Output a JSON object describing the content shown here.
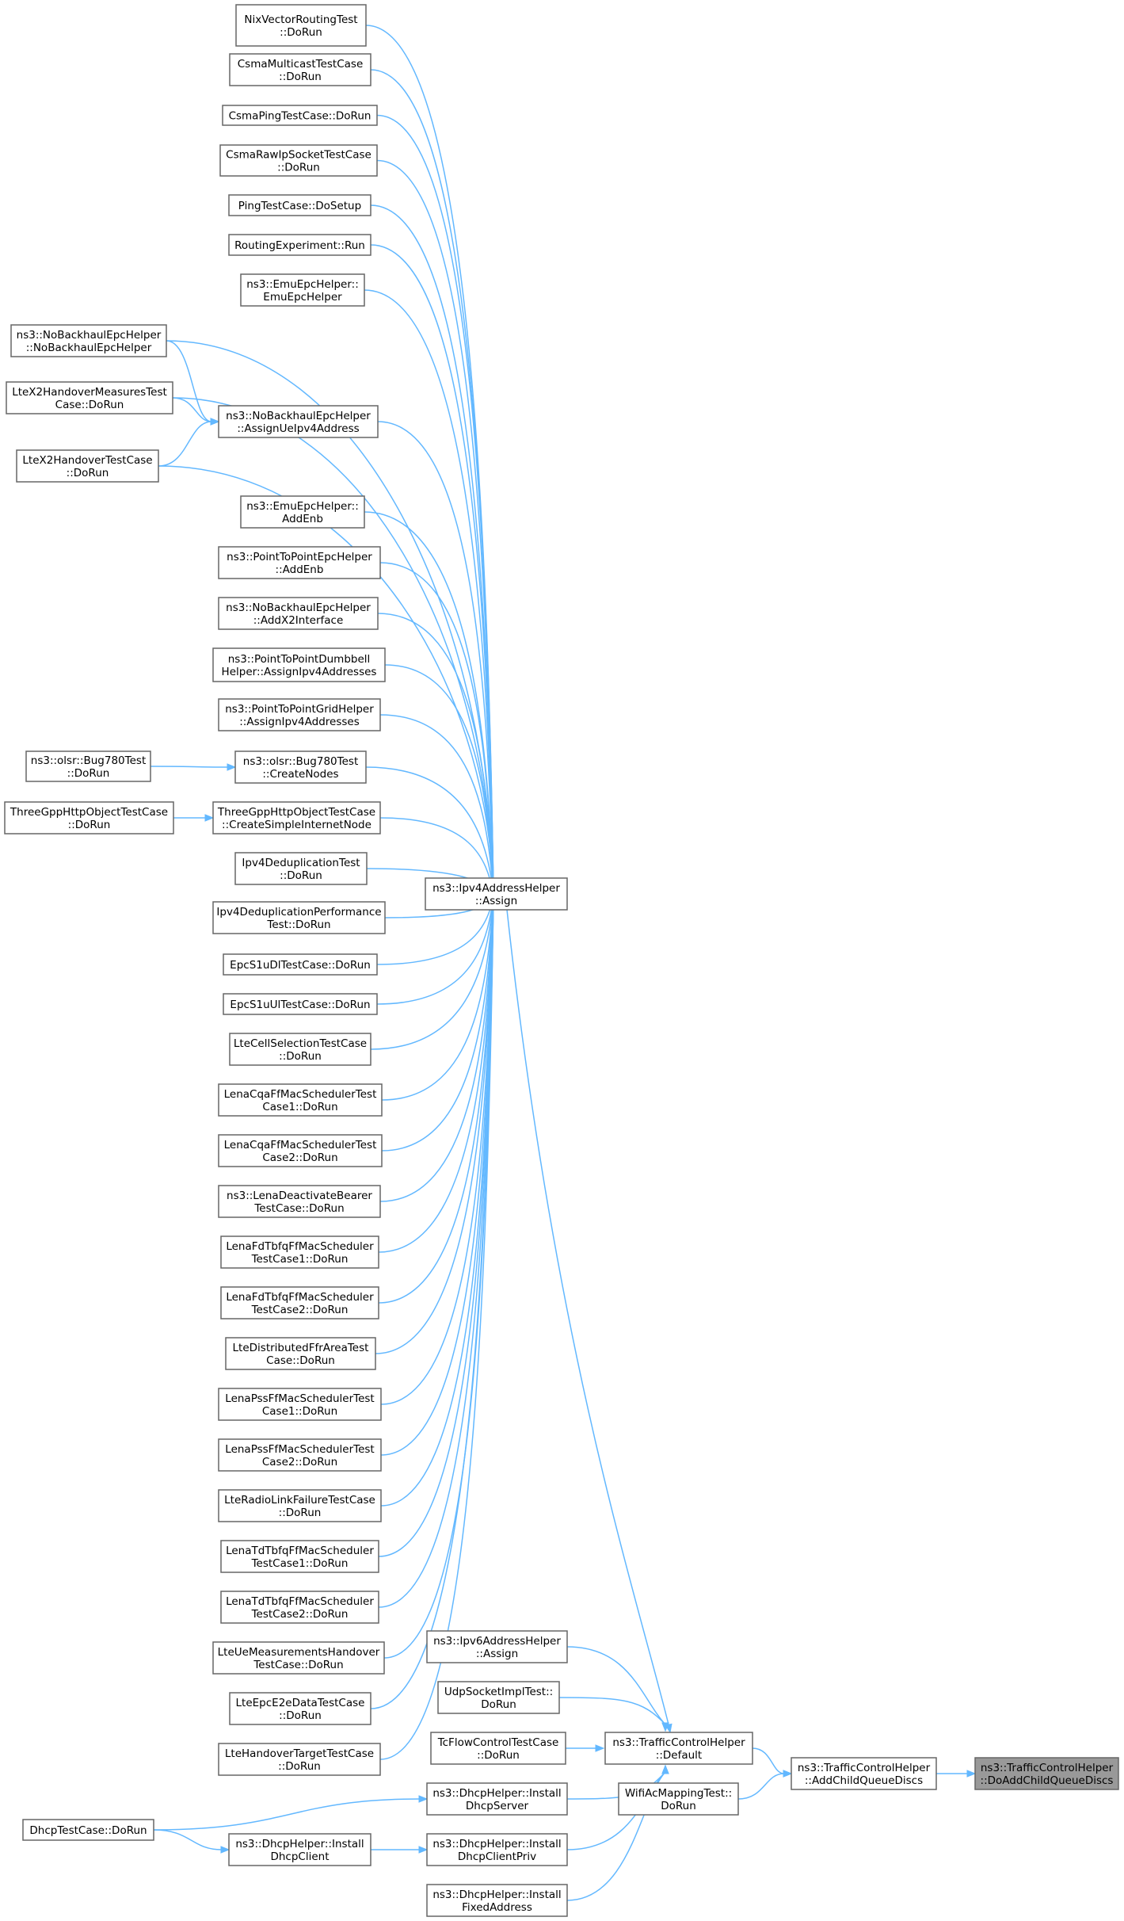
{
  "colors": {
    "edge": "#63b8ff",
    "node_border": "#666666",
    "node_fill": "#ffffff",
    "focus_fill": "#999999"
  },
  "nodes": [
    {
      "id": "nixvector",
      "lines": [
        "NixVectorRoutingTest",
        "::DoRun"
      ]
    },
    {
      "id": "csmamulticast",
      "lines": [
        "CsmaMulticastTestCase",
        "::DoRun"
      ]
    },
    {
      "id": "csmaping",
      "lines": [
        "CsmaPingTestCase::DoRun"
      ]
    },
    {
      "id": "csmarawip",
      "lines": [
        "CsmaRawIpSocketTestCase",
        "::DoRun"
      ]
    },
    {
      "id": "pingtest",
      "lines": [
        "PingTestCase::DoSetup"
      ]
    },
    {
      "id": "routingexp",
      "lines": [
        "RoutingExperiment::Run"
      ]
    },
    {
      "id": "emuepchelper",
      "lines": [
        "ns3::EmuEpcHelper::",
        "EmuEpcHelper"
      ]
    },
    {
      "id": "nobackhaul_ctor",
      "lines": [
        "ns3::NoBackhaulEpcHelper",
        "::NoBackhaulEpcHelper"
      ]
    },
    {
      "id": "ltex2measures",
      "lines": [
        "LteX2HandoverMeasuresTest",
        "Case::DoRun"
      ]
    },
    {
      "id": "nobackhaul_assign",
      "lines": [
        "ns3::NoBackhaulEpcHelper",
        "::AssignUeIpv4Address"
      ]
    },
    {
      "id": "ltex2handover",
      "lines": [
        "LteX2HandoverTestCase",
        "::DoRun"
      ]
    },
    {
      "id": "emu_addenb",
      "lines": [
        "ns3::EmuEpcHelper::",
        "AddEnb"
      ]
    },
    {
      "id": "p2p_addenb",
      "lines": [
        "ns3::PointToPointEpcHelper",
        "::AddEnb"
      ]
    },
    {
      "id": "nobackhaul_x2",
      "lines": [
        "ns3::NoBackhaulEpcHelper",
        "::AddX2Interface"
      ]
    },
    {
      "id": "dumbbell",
      "lines": [
        "ns3::PointToPointDumbbell",
        "Helper::AssignIpv4Addresses"
      ]
    },
    {
      "id": "gridhelper",
      "lines": [
        "ns3::PointToPointGridHelper",
        "::AssignIpv4Addresses"
      ]
    },
    {
      "id": "bug780_run",
      "lines": [
        "ns3::olsr::Bug780Test",
        "::DoRun"
      ]
    },
    {
      "id": "bug780_create",
      "lines": [
        "ns3::olsr::Bug780Test",
        "::CreateNodes"
      ]
    },
    {
      "id": "threegpp_run",
      "lines": [
        "ThreeGppHttpObjectTestCase",
        "::DoRun"
      ]
    },
    {
      "id": "threegpp_create",
      "lines": [
        "ThreeGppHttpObjectTestCase",
        "::CreateSimpleInternetNode"
      ]
    },
    {
      "id": "ipv4dedup",
      "lines": [
        "Ipv4DeduplicationTest",
        "::DoRun"
      ]
    },
    {
      "id": "ipv4assign",
      "lines": [
        "ns3::Ipv4AddressHelper",
        "::Assign"
      ]
    },
    {
      "id": "ipv4dedupperf",
      "lines": [
        "Ipv4DeduplicationPerformance",
        "Test::DoRun"
      ]
    },
    {
      "id": "epcs1udl",
      "lines": [
        "EpcS1uDlTestCase::DoRun"
      ]
    },
    {
      "id": "epcs1uul",
      "lines": [
        "EpcS1uUlTestCase::DoRun"
      ]
    },
    {
      "id": "ltecellsel",
      "lines": [
        "LteCellSelectionTestCase",
        "::DoRun"
      ]
    },
    {
      "id": "cqa1",
      "lines": [
        "LenaCqaFfMacSchedulerTest",
        "Case1::DoRun"
      ]
    },
    {
      "id": "cqa2",
      "lines": [
        "LenaCqaFfMacSchedulerTest",
        "Case2::DoRun"
      ]
    },
    {
      "id": "deactivate",
      "lines": [
        "ns3::LenaDeactivateBearer",
        "TestCase::DoRun"
      ]
    },
    {
      "id": "fdtbfq1",
      "lines": [
        "LenaFdTbfqFfMacScheduler",
        "TestCase1::DoRun"
      ]
    },
    {
      "id": "fdtbfq2",
      "lines": [
        "LenaFdTbfqFfMacScheduler",
        "TestCase2::DoRun"
      ]
    },
    {
      "id": "distffr",
      "lines": [
        "LteDistributedFfrAreaTest",
        "Case::DoRun"
      ]
    },
    {
      "id": "pss1",
      "lines": [
        "LenaPssFfMacSchedulerTest",
        "Case1::DoRun"
      ]
    },
    {
      "id": "pss2",
      "lines": [
        "LenaPssFfMacSchedulerTest",
        "Case2::DoRun"
      ]
    },
    {
      "id": "rlf",
      "lines": [
        "LteRadioLinkFailureTestCase",
        "::DoRun"
      ]
    },
    {
      "id": "tdtbfq1",
      "lines": [
        "LenaTdTbfqFfMacScheduler",
        "TestCase1::DoRun"
      ]
    },
    {
      "id": "tdtbfq2",
      "lines": [
        "LenaTdTbfqFfMacScheduler",
        "TestCase2::DoRun"
      ]
    },
    {
      "id": "uemeas",
      "lines": [
        "LteUeMeasurementsHandover",
        "TestCase::DoRun"
      ]
    },
    {
      "id": "epce2e",
      "lines": [
        "LteEpcE2eDataTestCase",
        "::DoRun"
      ]
    },
    {
      "id": "hotarget",
      "lines": [
        "LteHandoverTargetTestCase",
        "::DoRun"
      ]
    },
    {
      "id": "ipv6assign",
      "lines": [
        "ns3::Ipv6AddressHelper",
        "::Assign"
      ]
    },
    {
      "id": "udpsocket",
      "lines": [
        "UdpSocketImplTest::",
        "DoRun"
      ]
    },
    {
      "id": "tcflow",
      "lines": [
        "TcFlowControlTestCase",
        "::DoRun"
      ]
    },
    {
      "id": "tcdefault",
      "lines": [
        "ns3::TrafficControlHelper",
        "::Default"
      ]
    },
    {
      "id": "addchild",
      "lines": [
        "ns3::TrafficControlHelper",
        "::AddChildQueueDiscs"
      ]
    },
    {
      "id": "doaddchild",
      "lines": [
        "ns3::TrafficControlHelper",
        "::DoAddChildQueueDiscs"
      ]
    },
    {
      "id": "dhcpserver",
      "lines": [
        "ns3::DhcpHelper::Install",
        "DhcpServer"
      ]
    },
    {
      "id": "wifiac",
      "lines": [
        "WifiAcMappingTest::",
        "DoRun"
      ]
    },
    {
      "id": "dhcptest",
      "lines": [
        "DhcpTestCase::DoRun"
      ]
    },
    {
      "id": "dhcpclient",
      "lines": [
        "ns3::DhcpHelper::Install",
        "DhcpClient"
      ]
    },
    {
      "id": "dhcpclientpriv",
      "lines": [
        "ns3::DhcpHelper::Install",
        "DhcpClientPriv"
      ]
    },
    {
      "id": "fixedaddr",
      "lines": [
        "ns3::DhcpHelper::Install",
        "FixedAddress"
      ]
    }
  ],
  "edges": [
    [
      "nixvector",
      "ipv4assign"
    ],
    [
      "csmamulticast",
      "ipv4assign"
    ],
    [
      "csmaping",
      "ipv4assign"
    ],
    [
      "csmarawip",
      "ipv4assign"
    ],
    [
      "pingtest",
      "ipv4assign"
    ],
    [
      "routingexp",
      "ipv4assign"
    ],
    [
      "emuepchelper",
      "ipv4assign"
    ],
    [
      "nobackhaul_ctor",
      "ipv4assign"
    ],
    [
      "ltex2measures",
      "ipv4assign"
    ],
    [
      "nobackhaul_assign",
      "ipv4assign"
    ],
    [
      "ltex2handover",
      "ipv4assign"
    ],
    [
      "emu_addenb",
      "ipv4assign"
    ],
    [
      "p2p_addenb",
      "ipv4assign"
    ],
    [
      "nobackhaul_x2",
      "ipv4assign"
    ],
    [
      "dumbbell",
      "ipv4assign"
    ],
    [
      "gridhelper",
      "ipv4assign"
    ],
    [
      "bug780_create",
      "ipv4assign"
    ],
    [
      "threegpp_create",
      "ipv4assign"
    ],
    [
      "ipv4dedup",
      "ipv4assign"
    ],
    [
      "ipv4dedupperf",
      "ipv4assign"
    ],
    [
      "epcs1udl",
      "ipv4assign"
    ],
    [
      "epcs1uul",
      "ipv4assign"
    ],
    [
      "ltecellsel",
      "ipv4assign"
    ],
    [
      "cqa1",
      "ipv4assign"
    ],
    [
      "cqa2",
      "ipv4assign"
    ],
    [
      "deactivate",
      "ipv4assign"
    ],
    [
      "fdtbfq1",
      "ipv4assign"
    ],
    [
      "fdtbfq2",
      "ipv4assign"
    ],
    [
      "distffr",
      "ipv4assign"
    ],
    [
      "pss1",
      "ipv4assign"
    ],
    [
      "pss2",
      "ipv4assign"
    ],
    [
      "rlf",
      "ipv4assign"
    ],
    [
      "tdtbfq1",
      "ipv4assign"
    ],
    [
      "tdtbfq2",
      "ipv4assign"
    ],
    [
      "uemeas",
      "ipv4assign"
    ],
    [
      "epce2e",
      "ipv4assign"
    ],
    [
      "hotarget",
      "ipv4assign"
    ],
    [
      "nobackhaul_ctor",
      "nobackhaul_assign"
    ],
    [
      "ltex2measures",
      "nobackhaul_assign"
    ],
    [
      "ltex2handover",
      "nobackhaul_assign"
    ],
    [
      "bug780_run",
      "bug780_create"
    ],
    [
      "threegpp_run",
      "threegpp_create"
    ],
    [
      "ipv4assign",
      "tcdefault"
    ],
    [
      "ipv6assign",
      "tcdefault"
    ],
    [
      "udpsocket",
      "tcdefault"
    ],
    [
      "tcflow",
      "tcdefault"
    ],
    [
      "dhcpserver",
      "tcdefault"
    ],
    [
      "dhcpclientpriv",
      "tcdefault"
    ],
    [
      "fixedaddr",
      "tcdefault"
    ],
    [
      "tcdefault",
      "addchild"
    ],
    [
      "wifiac",
      "addchild"
    ],
    [
      "addchild",
      "doaddchild"
    ],
    [
      "dhcptest",
      "dhcpserver"
    ],
    [
      "dhcptest",
      "dhcpclient"
    ],
    [
      "dhcpclient",
      "dhcpclientpriv"
    ]
  ]
}
